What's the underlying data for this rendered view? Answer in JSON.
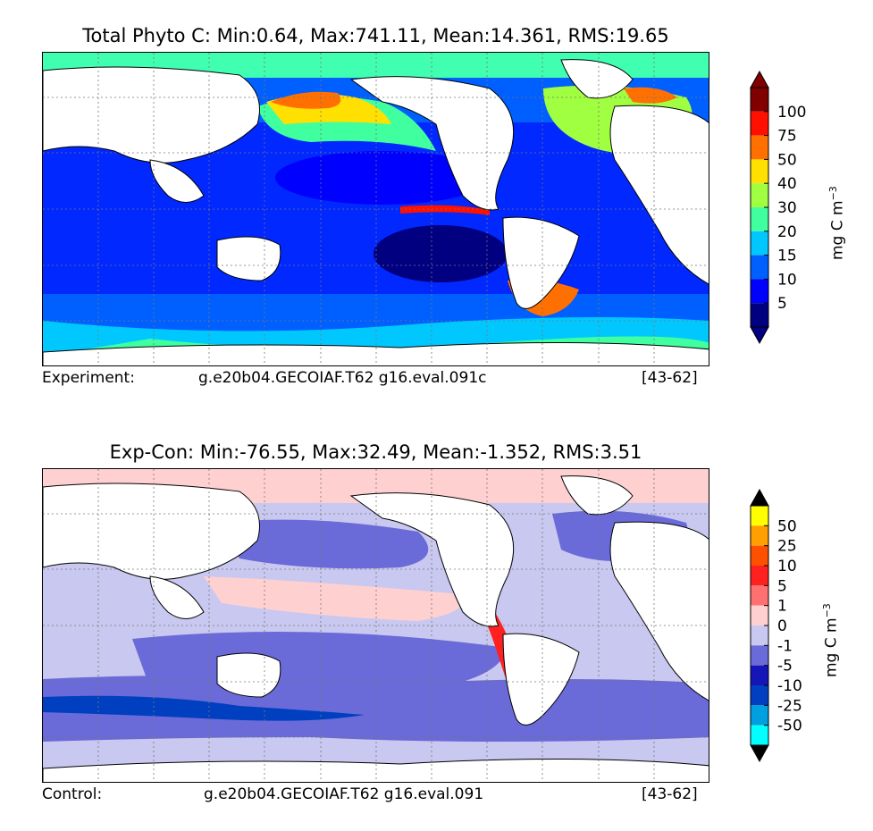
{
  "chart_data": [
    {
      "type": "heatmap",
      "title": "Total Phyto C: Min:0.64, Max:741.11, Mean:14.361, RMS:19.65",
      "colorbar_label": "mg C m",
      "colorbar_exponent": "−3",
      "colorbar_ticks": [
        "5",
        "10",
        "15",
        "20",
        "30",
        "40",
        "50",
        "75",
        "100"
      ],
      "colorbar_colors": [
        "#000080",
        "#0000ff",
        "#0060ff",
        "#00c8ff",
        "#40ff9f",
        "#a0ff40",
        "#ffe000",
        "#ff7000",
        "#ff1000",
        "#800000"
      ],
      "extend_colors": {
        "min": "#000080",
        "max": "#800000"
      },
      "footer": {
        "left": "Experiment:",
        "center": "g.e20b04.GECOIAF.T62 g16.eval.091c",
        "right": "[43-62]"
      }
    },
    {
      "type": "heatmap",
      "title": "Exp-Con: Min:-76.55, Max:32.49, Mean:-1.352, RMS:3.51",
      "colorbar_label": "mg C m",
      "colorbar_exponent": "−3",
      "colorbar_ticks": [
        "50",
        "25",
        "10",
        "5",
        "1",
        "0",
        "-1",
        "-5",
        "-10",
        "-25",
        "-50"
      ],
      "colorbar_colors": [
        "#ffff00",
        "#ff9f00",
        "#ff5000",
        "#ff2020",
        "#ff7070",
        "#ffd0d0",
        "#c8c8f0",
        "#6a6ad8",
        "#1515b8",
        "#0040c0",
        "#00a0e0",
        "#00ffff"
      ],
      "extend_colors": {
        "min": "#000000",
        "max": "#000000"
      },
      "footer": {
        "left": "Control:",
        "center": "g.e20b04.GECOIAF.T62 g16.eval.091",
        "right": "[43-62]"
      }
    }
  ]
}
